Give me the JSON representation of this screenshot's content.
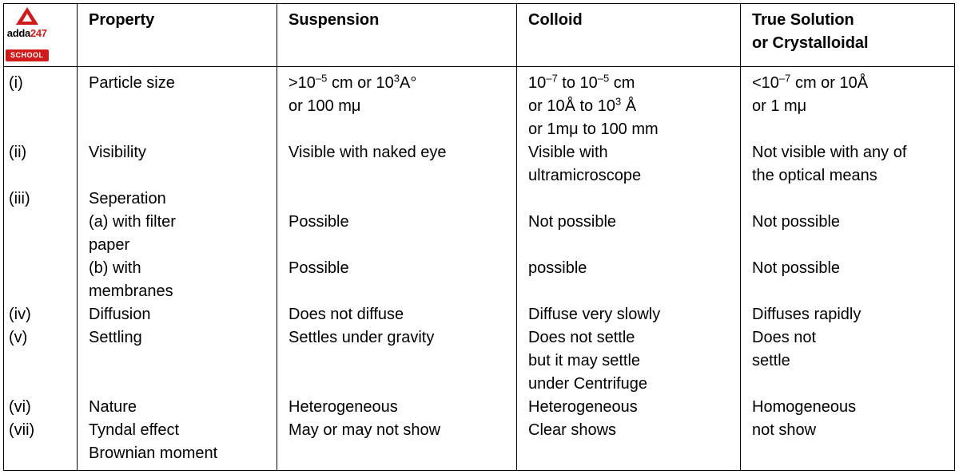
{
  "headers": {
    "property": "Property",
    "suspension": "Suspension",
    "colloid": "Colloid",
    "true_solution_l1": "True Solution",
    "true_solution_l2": "or Crystalloidal"
  },
  "logo": {
    "brand_black": "adda",
    "brand_red": "247",
    "school": "SCHOOL"
  },
  "body": {
    "num": {
      "i": "(i)",
      "ii": "(ii)",
      "iii": "(iii)",
      "iv": "(iv)",
      "v": "(v)",
      "vi": "(vi)",
      "vii": "(vii)"
    },
    "prop": {
      "particle_size": "Particle size",
      "visibility": "Visibility",
      "separation": "Seperation",
      "sep_a_l1": "(a) with filter",
      "sep_a_l2": "paper",
      "sep_b_l1": "(b) with",
      "sep_b_l2": "membranes",
      "diffusion": "Diffusion",
      "settling": "Settling",
      "nature": "Nature",
      "tyndall": "Tyndal effect",
      "brownian": "Brownian moment"
    },
    "susp": {
      "ps_l1_a": ">10",
      "ps_l1_b": " cm or 10",
      "ps_l1_c": "A°",
      "ps_l2": "or 100 mμ",
      "visibility": "Visible with naked eye",
      "sep_a": "Possible",
      "sep_b": "Possible",
      "diffusion": "Does not diffuse",
      "settling": "Settles under gravity",
      "nature": "Heterogeneous",
      "tyndall": "May or may not show"
    },
    "coll": {
      "ps_l1_a": "10",
      "ps_l1_b": " to 10",
      "ps_l1_c": " cm",
      "ps_l2_a": "or 10Å to 10",
      "ps_l2_b": " Å",
      "ps_l3": "or 1mμ to 100 mm",
      "vis_l1": "Visible with",
      "vis_l2": "ultramicroscope",
      "sep_a": "Not possible",
      "sep_b": "possible",
      "diffusion": "Diffuse very slowly",
      "set_l1": "Does not settle",
      "set_l2": "but it  may settle",
      "set_l3": "under Centrifuge",
      "nature": "Heterogeneous",
      "tyndall": "Clear shows"
    },
    "true": {
      "ps_l1_a": "<10",
      "ps_l1_b": " cm or 10Å",
      "ps_l2": "or 1 mμ",
      "vis_l1": "Not visible with any of",
      "vis_l2": "the optical means",
      "sep_a": "Not possible",
      "sep_b": "Not possible",
      "diffusion": "Diffuses rapidly",
      "set_l1": "Does not",
      "set_l2": "settle",
      "nature": "Homogeneous",
      "tyndall": "not show"
    },
    "exp": {
      "neg5": "–5",
      "neg7": "–7",
      "p3": "3"
    }
  }
}
